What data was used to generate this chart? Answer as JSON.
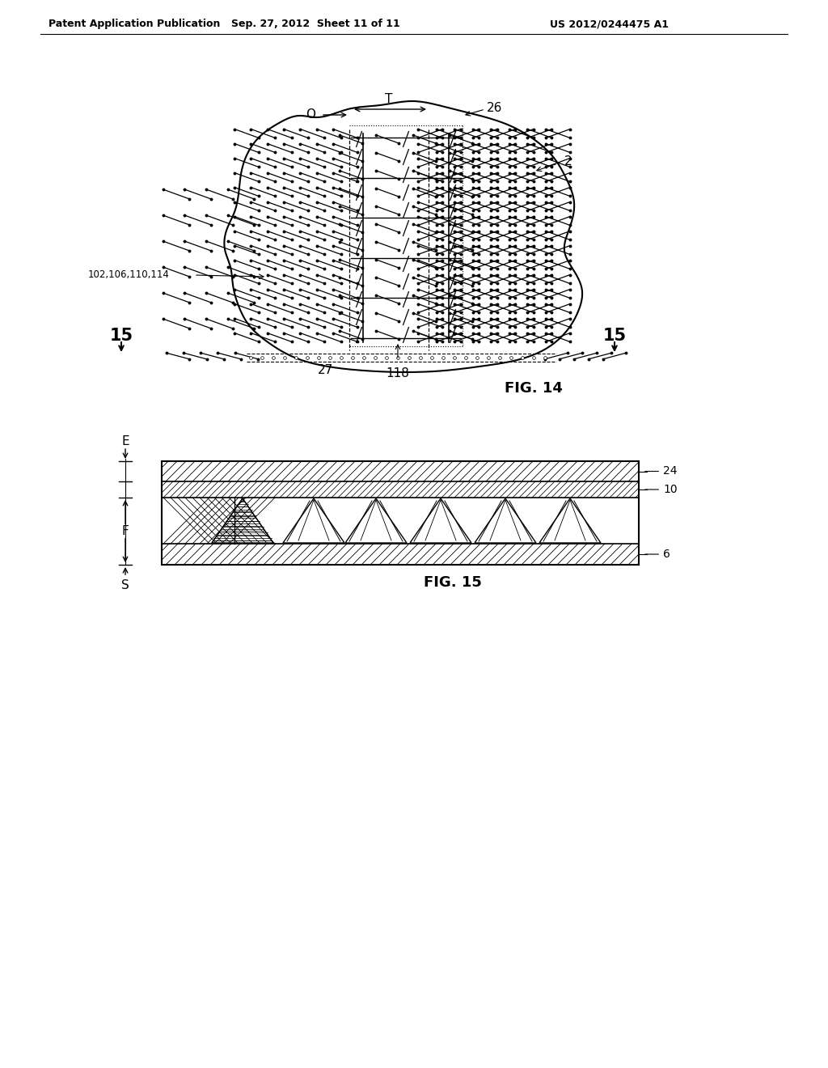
{
  "header_left": "Patent Application Publication",
  "header_mid": "Sep. 27, 2012  Sheet 11 of 11",
  "header_right": "US 2012/0244475 A1",
  "fig14_label": "FIG. 14",
  "fig15_label": "FIG. 15",
  "bg_color": "#ffffff",
  "line_color": "#000000"
}
